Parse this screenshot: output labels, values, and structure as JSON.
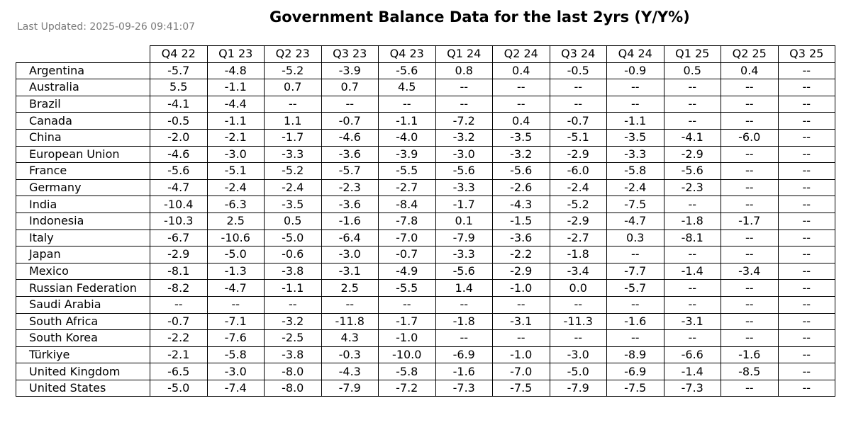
{
  "last_updated": "Last Updated: 2025-09-26 09:41:07",
  "chart_data": {
    "type": "table",
    "title": "Government Balance Data for the last 2yrs (Y/Y%)",
    "columns": [
      "Q4 22",
      "Q1 23",
      "Q2 23",
      "Q3 23",
      "Q4 23",
      "Q1 24",
      "Q2 24",
      "Q3 24",
      "Q4 24",
      "Q1 25",
      "Q2 25",
      "Q3 25"
    ],
    "rows": [
      {
        "label": "Argentina",
        "values": [
          "-5.7",
          "-4.8",
          "-5.2",
          "-3.9",
          "-5.6",
          "0.8",
          "0.4",
          "-0.5",
          "-0.9",
          "0.5",
          "0.4",
          "--"
        ]
      },
      {
        "label": "Australia",
        "values": [
          "5.5",
          "-1.1",
          "0.7",
          "0.7",
          "4.5",
          "--",
          "--",
          "--",
          "--",
          "--",
          "--",
          "--"
        ]
      },
      {
        "label": "Brazil",
        "values": [
          "-4.1",
          "-4.4",
          "--",
          "--",
          "--",
          "--",
          "--",
          "--",
          "--",
          "--",
          "--",
          "--"
        ]
      },
      {
        "label": "Canada",
        "values": [
          "-0.5",
          "-1.1",
          "1.1",
          "-0.7",
          "-1.1",
          "-7.2",
          "0.4",
          "-0.7",
          "-1.1",
          "--",
          "--",
          "--"
        ]
      },
      {
        "label": "China",
        "values": [
          "-2.0",
          "-2.1",
          "-1.7",
          "-4.6",
          "-4.0",
          "-3.2",
          "-3.5",
          "-5.1",
          "-3.5",
          "-4.1",
          "-6.0",
          "--"
        ]
      },
      {
        "label": "European Union",
        "values": [
          "-4.6",
          "-3.0",
          "-3.3",
          "-3.6",
          "-3.9",
          "-3.0",
          "-3.2",
          "-2.9",
          "-3.3",
          "-2.9",
          "--",
          "--"
        ]
      },
      {
        "label": "France",
        "values": [
          "-5.6",
          "-5.1",
          "-5.2",
          "-5.7",
          "-5.5",
          "-5.6",
          "-5.6",
          "-6.0",
          "-5.8",
          "-5.6",
          "--",
          "--"
        ]
      },
      {
        "label": "Germany",
        "values": [
          "-4.7",
          "-2.4",
          "-2.4",
          "-2.3",
          "-2.7",
          "-3.3",
          "-2.6",
          "-2.4",
          "-2.4",
          "-2.3",
          "--",
          "--"
        ]
      },
      {
        "label": "India",
        "values": [
          "-10.4",
          "-6.3",
          "-3.5",
          "-3.6",
          "-8.4",
          "-1.7",
          "-4.3",
          "-5.2",
          "-7.5",
          "--",
          "--",
          "--"
        ]
      },
      {
        "label": "Indonesia",
        "values": [
          "-10.3",
          "2.5",
          "0.5",
          "-1.6",
          "-7.8",
          "0.1",
          "-1.5",
          "-2.9",
          "-4.7",
          "-1.8",
          "-1.7",
          "--"
        ]
      },
      {
        "label": "Italy",
        "values": [
          "-6.7",
          "-10.6",
          "-5.0",
          "-6.4",
          "-7.0",
          "-7.9",
          "-3.6",
          "-2.7",
          "0.3",
          "-8.1",
          "--",
          "--"
        ]
      },
      {
        "label": "Japan",
        "values": [
          "-2.9",
          "-5.0",
          "-0.6",
          "-3.0",
          "-0.7",
          "-3.3",
          "-2.2",
          "-1.8",
          "--",
          "--",
          "--",
          "--"
        ]
      },
      {
        "label": "Mexico",
        "values": [
          "-8.1",
          "-1.3",
          "-3.8",
          "-3.1",
          "-4.9",
          "-5.6",
          "-2.9",
          "-3.4",
          "-7.7",
          "-1.4",
          "-3.4",
          "--"
        ]
      },
      {
        "label": "Russian Federation",
        "values": [
          "-8.2",
          "-4.7",
          "-1.1",
          "2.5",
          "-5.5",
          "1.4",
          "-1.0",
          "0.0",
          "-5.7",
          "--",
          "--",
          "--"
        ]
      },
      {
        "label": "Saudi Arabia",
        "values": [
          "--",
          "--",
          "--",
          "--",
          "--",
          "--",
          "--",
          "--",
          "--",
          "--",
          "--",
          "--"
        ]
      },
      {
        "label": "South Africa",
        "values": [
          "-0.7",
          "-7.1",
          "-3.2",
          "-11.8",
          "-1.7",
          "-1.8",
          "-3.1",
          "-11.3",
          "-1.6",
          "-3.1",
          "--",
          "--"
        ]
      },
      {
        "label": "South Korea",
        "values": [
          "-2.2",
          "-7.6",
          "-2.5",
          "4.3",
          "-1.0",
          "--",
          "--",
          "--",
          "--",
          "--",
          "--",
          "--"
        ]
      },
      {
        "label": "Türkiye",
        "values": [
          "-2.1",
          "-5.8",
          "-3.8",
          "-0.3",
          "-10.0",
          "-6.9",
          "-1.0",
          "-3.0",
          "-8.9",
          "-6.6",
          "-1.6",
          "--"
        ]
      },
      {
        "label": "United Kingdom",
        "values": [
          "-6.5",
          "-3.0",
          "-8.0",
          "-4.3",
          "-5.8",
          "-1.6",
          "-7.0",
          "-5.0",
          "-6.9",
          "-1.4",
          "-8.5",
          "--"
        ]
      },
      {
        "label": "United States",
        "values": [
          "-5.0",
          "-7.4",
          "-8.0",
          "-7.9",
          "-7.2",
          "-7.3",
          "-7.5",
          "-7.9",
          "-7.5",
          "-7.3",
          "--",
          "--"
        ]
      }
    ]
  }
}
